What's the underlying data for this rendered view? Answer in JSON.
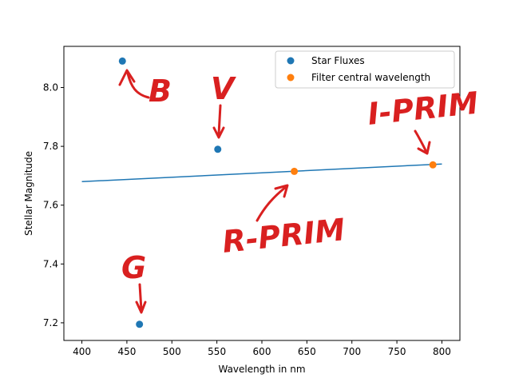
{
  "chart_data": {
    "type": "scatter",
    "xlabel": "Wavelength in nm",
    "ylabel": "Stellar Magnitude",
    "xlim": [
      380,
      820
    ],
    "ylim": [
      7.14,
      8.14
    ],
    "xticks": [
      400,
      450,
      500,
      550,
      600,
      650,
      700,
      750,
      800
    ],
    "yticks": [
      7.2,
      7.4,
      7.6,
      7.8,
      8.0
    ],
    "xtick_labels": [
      "400",
      "450",
      "500",
      "550",
      "600",
      "650",
      "700",
      "750",
      "800"
    ],
    "ytick_labels": [
      "7.2",
      "7.4",
      "7.6",
      "7.8",
      "8.0"
    ],
    "grid": false,
    "legend_position": "top-right",
    "series": [
      {
        "name": "Star Fluxes",
        "kind": "scatter",
        "color": "#1f77b4",
        "points": [
          {
            "x": 445,
            "y": 8.09
          },
          {
            "x": 551,
            "y": 7.79
          },
          {
            "x": 464,
            "y": 7.195
          }
        ]
      },
      {
        "name": "Filter central wavelength",
        "kind": "scatter",
        "color": "#ff7f0e",
        "points": [
          {
            "x": 636,
            "y": 7.715
          },
          {
            "x": 790,
            "y": 7.737
          }
        ]
      },
      {
        "name": "",
        "kind": "line",
        "color": "#1f77b4",
        "points": [
          {
            "x": 400,
            "y": 7.68
          },
          {
            "x": 800,
            "y": 7.74
          }
        ]
      }
    ],
    "annotations": [
      {
        "id": "B",
        "text": "B"
      },
      {
        "id": "V",
        "text": "V"
      },
      {
        "id": "G",
        "text": "G"
      },
      {
        "id": "R",
        "text": "R-PRIM"
      },
      {
        "id": "I",
        "text": "I-PRIM"
      }
    ]
  }
}
